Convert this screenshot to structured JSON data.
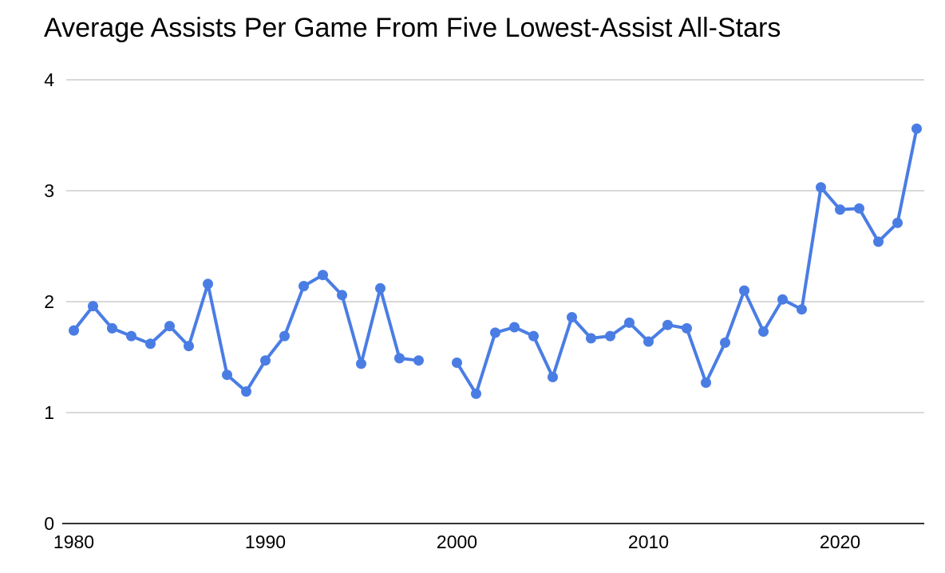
{
  "title": "Average Assists Per Game From Five Lowest-Assist All-Stars",
  "chart_data": {
    "type": "line",
    "title": "Average Assists Per Game From Five Lowest-Assist All-Stars",
    "xlabel": "",
    "ylabel": "",
    "x": [
      1980,
      1981,
      1982,
      1983,
      1984,
      1985,
      1986,
      1987,
      1988,
      1989,
      1990,
      1991,
      1992,
      1993,
      1994,
      1995,
      1996,
      1997,
      1998,
      1999,
      2000,
      2001,
      2002,
      2003,
      2004,
      2005,
      2006,
      2007,
      2008,
      2009,
      2010,
      2011,
      2012,
      2013,
      2014,
      2015,
      2016,
      2017,
      2018,
      2019,
      2020,
      2021,
      2022,
      2023,
      2024
    ],
    "values": [
      1.74,
      1.96,
      1.76,
      1.69,
      1.62,
      1.78,
      1.6,
      2.16,
      1.34,
      1.19,
      1.47,
      1.69,
      2.14,
      2.24,
      2.06,
      1.44,
      2.12,
      1.49,
      1.47,
      null,
      1.45,
      1.17,
      1.72,
      1.77,
      1.69,
      1.32,
      1.86,
      1.67,
      1.69,
      1.81,
      1.64,
      1.79,
      1.76,
      1.27,
      1.63,
      2.1,
      1.73,
      2.02,
      1.93,
      3.03,
      2.83,
      2.84,
      2.54,
      2.71,
      3.56
    ],
    "missing_x_note": "1999 has no data point (gap in line)",
    "xticks": [
      1980,
      1990,
      2000,
      2010,
      2020
    ],
    "yticks": [
      0,
      1,
      2,
      3,
      4
    ],
    "ylim": [
      0,
      4
    ],
    "grid": "horizontal-only",
    "legend": "none",
    "marker": "circle",
    "colors": {
      "series": "#4a7de4",
      "gridline": "#d9d9d9",
      "axis_line": "#333333",
      "tick_label": "#000000",
      "title": "#000000",
      "background": "#ffffff"
    }
  }
}
